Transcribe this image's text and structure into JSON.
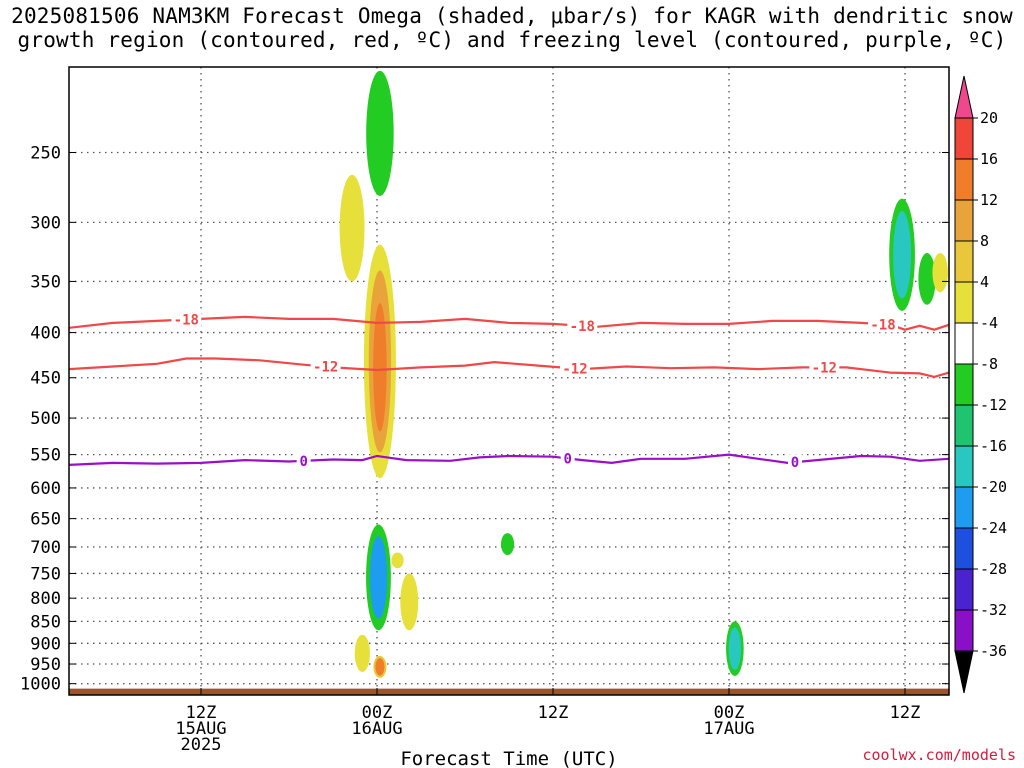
{
  "title": {
    "line1": "2025081506 NAM3KM Forecast Omega (shaded, μbar/s) for KAGR with dendritic snow",
    "line2": "growth region (contoured, red, ºC) and freezing level (contoured, purple, ºC)"
  },
  "credit": "coolwx.com/models",
  "chart_data": {
    "type": "heatmap",
    "title": "2025081506 NAM3KM Forecast Omega (shaded, μbar/s) for KAGR with dendritic snow growth region (contoured, red, ºC) and freezing level (contoured, purple, ºC)",
    "xlabel": "Forecast Time (UTC)",
    "ylabel": "",
    "x_unit": "hours since 2025-08-15 00Z",
    "xlim": [
      3,
      63
    ],
    "y_unit": "hPa",
    "ylim": [
      1030,
      200
    ],
    "y_scale": "log (pressure)",
    "grid": "dotted",
    "x_ticks": [
      {
        "x": 12,
        "lines": [
          "12Z",
          "15AUG",
          "2025"
        ]
      },
      {
        "x": 24,
        "lines": [
          "00Z",
          "16AUG"
        ]
      },
      {
        "x": 36,
        "lines": [
          "12Z"
        ]
      },
      {
        "x": 48,
        "lines": [
          "00Z",
          "17AUG"
        ]
      },
      {
        "x": 60,
        "lines": [
          "12Z"
        ]
      }
    ],
    "y_ticks": [
      250,
      300,
      350,
      400,
      450,
      500,
      550,
      600,
      650,
      700,
      750,
      800,
      850,
      900,
      950,
      1000
    ],
    "colorbar": {
      "levels": [
        20,
        16,
        12,
        8,
        4,
        -4,
        -8,
        -12,
        -16,
        -20,
        -24,
        -28,
        -32,
        -36
      ],
      "colors": [
        "#f0488c",
        "#f0463a",
        "#f07d2a",
        "#e8a43a",
        "#e8c83a",
        "#e8e03a",
        "#ffffff",
        "#22cc22",
        "#20c470",
        "#28c8c0",
        "#1e9cf0",
        "#1e50e0",
        "#4a22d0",
        "#8a10c8",
        "#a8a8a8",
        "#000000"
      ]
    },
    "omega_features": [
      {
        "x": 22.3,
        "p_top": 265,
        "p_bot": 350,
        "value": 6,
        "color": "#e8e03a"
      },
      {
        "x": 24.2,
        "p_top": 202,
        "p_bot": 280,
        "value": -6,
        "color": "#22cc22"
      },
      {
        "x": 24.2,
        "p_top": 318,
        "p_bot": 585,
        "value": 12,
        "color": "#e8a43a",
        "core_color": "#f07d2a",
        "edge_color": "#e8e03a"
      },
      {
        "x": 24.1,
        "p_top": 660,
        "p_bot": 870,
        "value": -16,
        "color": "#1e9cf0",
        "edge_color": "#22cc22"
      },
      {
        "x": 25.4,
        "p_top": 710,
        "p_bot": 740,
        "value": 5,
        "color": "#e8e03a"
      },
      {
        "x": 26.2,
        "p_top": 750,
        "p_bot": 870,
        "value": 5,
        "color": "#e8e03a"
      },
      {
        "x": 23.0,
        "p_top": 880,
        "p_bot": 970,
        "value": 5,
        "color": "#e8e03a"
      },
      {
        "x": 24.2,
        "p_top": 930,
        "p_bot": 985,
        "value": 12,
        "color": "#f07d2a",
        "edge_color": "#e8c83a"
      },
      {
        "x": 32.9,
        "p_top": 675,
        "p_bot": 715,
        "value": -6,
        "color": "#22cc22"
      },
      {
        "x": 48.4,
        "p_top": 850,
        "p_bot": 980,
        "value": -12,
        "color": "#28c8c0",
        "edge_color": "#22cc22"
      },
      {
        "x": 59.8,
        "p_top": 282,
        "p_bot": 378,
        "value": -12,
        "color": "#28c8c0",
        "edge_color": "#22cc22"
      },
      {
        "x": 61.5,
        "p_top": 325,
        "p_bot": 372,
        "value": -6,
        "color": "#22cc22"
      },
      {
        "x": 62.4,
        "p_top": 325,
        "p_bot": 360,
        "value": 5,
        "color": "#e8e03a"
      }
    ],
    "contours": [
      {
        "name": "-18",
        "color": "#f04848",
        "labels_x": [
          11,
          38,
          58.5
        ],
        "points": [
          [
            3,
            395
          ],
          [
            6,
            390
          ],
          [
            9,
            388
          ],
          [
            12,
            386
          ],
          [
            15,
            384
          ],
          [
            18,
            386
          ],
          [
            21,
            386
          ],
          [
            24,
            390
          ],
          [
            27,
            389
          ],
          [
            30,
            386
          ],
          [
            33,
            390
          ],
          [
            36,
            391
          ],
          [
            39,
            394
          ],
          [
            42,
            390
          ],
          [
            45,
            391
          ],
          [
            48,
            391
          ],
          [
            51,
            388
          ],
          [
            54,
            388
          ],
          [
            57,
            390
          ],
          [
            59,
            392
          ],
          [
            60,
            397
          ],
          [
            61,
            393
          ],
          [
            62,
            397
          ],
          [
            63,
            392
          ]
        ]
      },
      {
        "name": "-12",
        "color": "#f04848",
        "labels_x": [
          20.5,
          37.5,
          54.5
        ],
        "points": [
          [
            3,
            440
          ],
          [
            6,
            437
          ],
          [
            9,
            434
          ],
          [
            11,
            428
          ],
          [
            13,
            428
          ],
          [
            16,
            430
          ],
          [
            19,
            435
          ],
          [
            21,
            438
          ],
          [
            24,
            441
          ],
          [
            27,
            438
          ],
          [
            30,
            436
          ],
          [
            32,
            432
          ],
          [
            35,
            436
          ],
          [
            38,
            440
          ],
          [
            41,
            437
          ],
          [
            44,
            439
          ],
          [
            47,
            438
          ],
          [
            50,
            440
          ],
          [
            53,
            438
          ],
          [
            56,
            438
          ],
          [
            59,
            444
          ],
          [
            61,
            445
          ],
          [
            62,
            449
          ],
          [
            63,
            444
          ]
        ]
      },
      {
        "name": "0",
        "color": "#9a10c8",
        "labels_x": [
          19,
          37,
          52.5
        ],
        "points": [
          [
            3,
            565
          ],
          [
            6,
            562
          ],
          [
            9,
            563
          ],
          [
            12,
            562
          ],
          [
            15,
            558
          ],
          [
            18,
            560
          ],
          [
            21,
            557
          ],
          [
            23,
            558
          ],
          [
            24,
            552
          ],
          [
            26,
            558
          ],
          [
            29,
            559
          ],
          [
            31,
            554
          ],
          [
            33,
            552
          ],
          [
            36,
            553
          ],
          [
            38,
            558
          ],
          [
            40,
            562
          ],
          [
            42,
            556
          ],
          [
            45,
            556
          ],
          [
            48,
            550
          ],
          [
            50,
            556
          ],
          [
            52,
            562
          ],
          [
            54,
            558
          ],
          [
            57,
            552
          ],
          [
            59,
            553
          ],
          [
            61,
            559
          ],
          [
            63,
            556
          ]
        ]
      }
    ],
    "ground_level": 1013
  }
}
